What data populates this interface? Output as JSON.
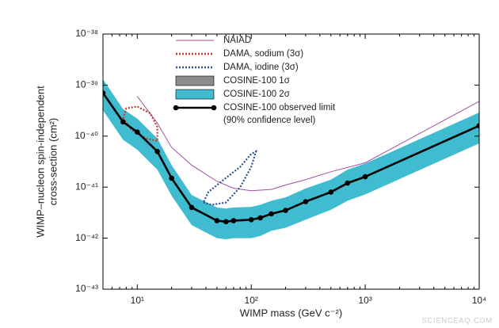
{
  "chart_data": {
    "type": "line",
    "xlabel": "WIMP mass (GeV c⁻²)",
    "ylabel": [
      "WIMP–nucleon spin-independent",
      "cross-section (cm²)"
    ],
    "xscale": "log",
    "yscale": "log",
    "xlim": [
      5,
      10000
    ],
    "ylim": [
      1e-43,
      1e-38
    ],
    "xticks": [
      {
        "value": 10,
        "label": "10¹"
      },
      {
        "value": 100,
        "label": "10²"
      },
      {
        "value": 1000,
        "label": "10³"
      },
      {
        "value": 10000,
        "label": "10⁴"
      }
    ],
    "yticks": [
      {
        "value": 1e-43,
        "label": "10⁻⁴³"
      },
      {
        "value": 1e-42,
        "label": "10⁻⁴²"
      },
      {
        "value": 1e-41,
        "label": "10⁻⁴¹"
      },
      {
        "value": 1e-40,
        "label": "10⁻⁴⁰"
      },
      {
        "value": 1e-39,
        "label": "10⁻³⁹"
      },
      {
        "value": 1e-38,
        "label": "10⁻³⁸"
      }
    ],
    "legend": "top",
    "watermark": "SCIENCEAQ.COM",
    "series": [
      {
        "name": "NAIAD",
        "kind": "line",
        "color": "#a050a0",
        "style": "solid",
        "x": [
          10,
          15,
          20,
          30,
          50,
          70,
          100,
          150,
          200,
          300,
          500,
          1000,
          10000
        ],
        "values": [
          6e-40,
          1.8e-40,
          6e-41,
          2.7e-41,
          1.3e-41,
          9.5e-42,
          8.5e-42,
          9e-42,
          1.1e-41,
          1.4e-41,
          2e-41,
          3e-41,
          4.8e-40
        ]
      },
      {
        "name": "DAMA, sodium (3σ)",
        "kind": "line",
        "color": "#c0392b",
        "style": "dotted",
        "x": [
          7.5,
          8,
          10,
          13,
          15,
          15,
          12,
          9,
          7.5
        ],
        "values": [
          2.2e-40,
          3.5e-40,
          3.8e-40,
          2.8e-40,
          1.5e-40,
          8e-41,
          9e-41,
          1.3e-40,
          2.2e-40
        ]
      },
      {
        "name": "DAMA, iodine (3σ)",
        "kind": "line",
        "color": "#2c4f8c",
        "style": "dotted",
        "x": [
          38,
          45,
          60,
          80,
          100,
          110,
          100,
          80,
          55,
          42,
          38
        ],
        "values": [
          5e-42,
          4.5e-42,
          5e-42,
          1e-41,
          2.5e-41,
          5e-41,
          4.5e-41,
          2.5e-41,
          1.3e-41,
          8e-42,
          5e-42
        ]
      },
      {
        "name": "COSINE-100 1σ",
        "kind": "band",
        "color": "#8c8c8c",
        "x": [
          5,
          7.5,
          10,
          15,
          20,
          30,
          50,
          60,
          70,
          100,
          120,
          150,
          200,
          300,
          500,
          700,
          1000,
          10000
        ],
        "upper": [
          9.5e-40,
          2.6e-40,
          1.6e-40,
          6.8e-41,
          2e-41,
          5.4e-42,
          3e-42,
          2.8e-42,
          3e-42,
          3.1e-42,
          3.4e-42,
          4e-42,
          4.7e-42,
          7e-42,
          1.1e-41,
          1.6e-41,
          2.2e-41,
          2.2e-40
        ],
        "lower": [
          4.9e-40,
          1.3e-40,
          8.4e-41,
          3.5e-41,
          1.05e-41,
          2.8e-42,
          1.5e-42,
          1.5e-42,
          1.5e-42,
          1.6e-42,
          1.75e-42,
          2.1e-42,
          2.5e-42,
          3.6e-42,
          5.6e-42,
          8.4e-42,
          1.1e-41,
          1.1e-40
        ]
      },
      {
        "name": "COSINE-100 2σ",
        "kind": "band",
        "color": "#3fbcd0",
        "x": [
          5,
          7.5,
          10,
          15,
          20,
          30,
          50,
          60,
          70,
          100,
          120,
          150,
          200,
          300,
          500,
          700,
          1000,
          10000
        ],
        "upper": [
          1.3e-39,
          3.4e-40,
          2.2e-40,
          9e-41,
          2.7e-41,
          7e-42,
          4e-42,
          3.8e-42,
          4e-42,
          4.1e-42,
          4.5e-42,
          5.4e-42,
          6.3e-42,
          9.4e-42,
          1.4e-41,
          2.2e-41,
          2.9e-41,
          2.9e-40
        ],
        "lower": [
          3.2e-40,
          8.5e-41,
          5.4e-41,
          2.2e-41,
          6.8e-42,
          1.8e-42,
          1e-42,
          9.5e-43,
          1e-42,
          1e-42,
          1.1e-42,
          1.4e-42,
          1.6e-42,
          2.3e-42,
          3.6e-42,
          5.4e-42,
          7.2e-42,
          7.2e-41
        ]
      },
      {
        "name": "COSINE-100 observed limit\n(90% confidence level)",
        "kind": "line",
        "color": "#000000",
        "style": "solid",
        "markers": true,
        "x": [
          5,
          7.5,
          10,
          15,
          20,
          30,
          50,
          60,
          70,
          100,
          120,
          150,
          200,
          300,
          500,
          700,
          1000,
          10000
        ],
        "values": [
          7e-40,
          1.9e-40,
          1.2e-40,
          5e-41,
          1.5e-41,
          4e-42,
          2.2e-42,
          2.1e-42,
          2.2e-42,
          2.3e-42,
          2.5e-42,
          3e-42,
          3.5e-42,
          5.2e-42,
          8e-42,
          1.2e-41,
          1.6e-41,
          1.6e-40
        ]
      }
    ]
  }
}
